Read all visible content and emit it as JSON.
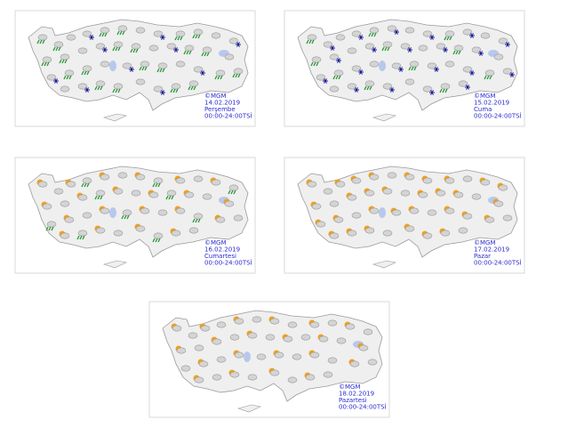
{
  "maps": [
    {
      "copyright": "©MGM",
      "date": "14.02.2019",
      "day": "Perşembe",
      "time": "00:00-24:00TSİ"
    },
    {
      "copyright": "©MGM",
      "date": "15.02.2019",
      "day": "Cuma",
      "time": "00:00-24:00TSİ"
    },
    {
      "copyright": "©MGM",
      "date": "16.02.2019",
      "day": "Cumartesi",
      "time": "00:00-24:00TSİ"
    },
    {
      "copyright": "©MGM",
      "date": "17.02.2019",
      "day": "Pazar",
      "time": "00:00-24:00TSİ"
    },
    {
      "copyright": "©MGM",
      "date": "18.02.2019",
      "day": "Pazartesi",
      "time": "00:00-24:00TSİ"
    }
  ]
}
